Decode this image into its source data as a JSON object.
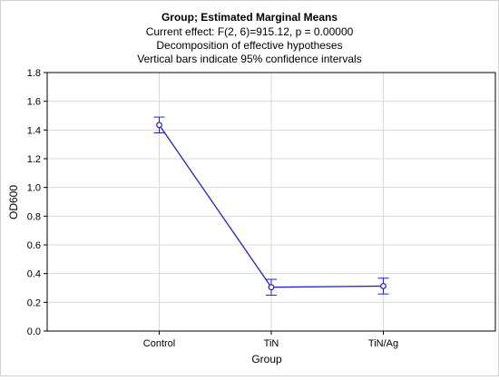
{
  "chart_data": {
    "type": "line",
    "title": "Group; Estimated Marginal Means",
    "subtitle_lines": [
      "Current effect: F(2, 6)=915.12, p = 0.00000",
      "Decomposition of effective hypotheses",
      "Vertical bars indicate 95% confidence intervals"
    ],
    "xlabel": "Group",
    "ylabel": "OD600",
    "categories": [
      "Control",
      "TiN",
      "TiN/Ag"
    ],
    "series": [
      {
        "values": [
          1.435,
          0.305,
          0.313
        ],
        "ci_lower": [
          1.38,
          0.25,
          0.258
        ],
        "ci_upper": [
          1.49,
          0.36,
          0.368
        ],
        "color": "#1f1fd6"
      }
    ],
    "ylim": [
      0,
      1.8
    ],
    "yticks": [
      0.0,
      0.2,
      0.4,
      0.6,
      0.8,
      1.0,
      1.2,
      1.4,
      1.6,
      1.8
    ],
    "ytick_labels": [
      "0.0",
      "0.2",
      "0.4",
      "0.6",
      "0.8",
      "1.0",
      "1.2",
      "1.4",
      "1.6",
      "1.8"
    ],
    "grid": true,
    "legend": "none"
  }
}
